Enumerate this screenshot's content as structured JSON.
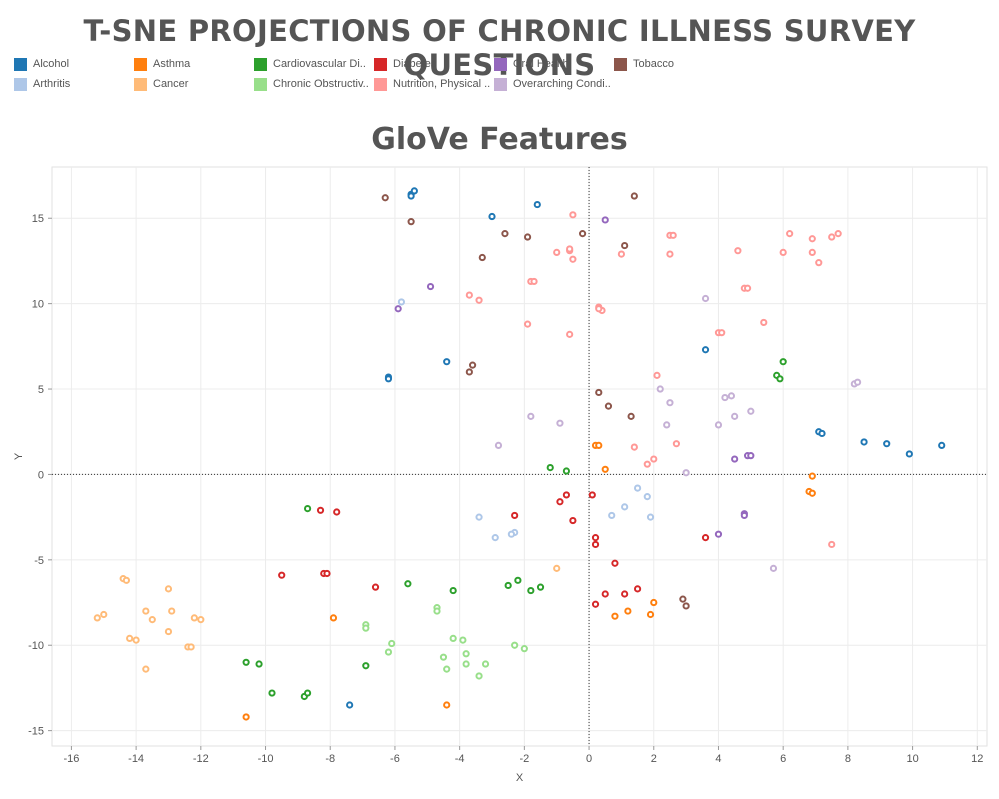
{
  "page": {
    "title": "T-SNE PROJECTIONS OF CHRONIC ILLNESS SURVEY QUESTIONS"
  },
  "legend": [
    {
      "label": "Alcohol",
      "color": "#1f77b4"
    },
    {
      "label": "Asthma",
      "color": "#ff7f0e"
    },
    {
      "label": "Cardiovascular Di..",
      "color": "#2ca02c"
    },
    {
      "label": "Diabetes",
      "color": "#d62728"
    },
    {
      "label": "Oral Health",
      "color": "#9467bd"
    },
    {
      "label": "Tobacco",
      "color": "#8c564b"
    },
    {
      "label": "Arthritis",
      "color": "#aec7e8"
    },
    {
      "label": "Cancer",
      "color": "#ffbb78"
    },
    {
      "label": "Chronic Obstructiv..",
      "color": "#98df8a"
    },
    {
      "label": "Nutrition, Physical ..",
      "color": "#ff9896"
    },
    {
      "label": "Overarching Condi..",
      "color": "#c5b0d5"
    }
  ],
  "chart_data": {
    "type": "scatter",
    "title": "GloVe Features",
    "xlabel": "X",
    "ylabel": "Y",
    "xlim": [
      -16.6,
      12.3
    ],
    "ylim": [
      -15.9,
      18.0
    ],
    "xticks": [
      -16,
      -14,
      -12,
      -10,
      -8,
      -6,
      -4,
      -2,
      0,
      2,
      4,
      6,
      8,
      10,
      12
    ],
    "yticks": [
      -15,
      -10,
      -5,
      0,
      5,
      10,
      15
    ],
    "grid": true,
    "reference_lines": {
      "x": 0,
      "y": 0,
      "style": "dotted"
    },
    "series": [
      {
        "name": "Alcohol",
        "color": "#1f77b4",
        "points": [
          [
            -5.5,
            16.4
          ],
          [
            -5.4,
            16.6
          ],
          [
            -5.5,
            16.3
          ],
          [
            -1.6,
            15.8
          ],
          [
            -3.0,
            15.1
          ],
          [
            -6.2,
            5.7
          ],
          [
            -6.2,
            5.6
          ],
          [
            -4.4,
            6.6
          ],
          [
            3.6,
            7.3
          ],
          [
            7.1,
            2.5
          ],
          [
            7.2,
            2.4
          ],
          [
            8.5,
            1.9
          ],
          [
            9.2,
            1.8
          ],
          [
            9.9,
            1.2
          ],
          [
            10.9,
            1.7
          ],
          [
            -7.4,
            -13.5
          ]
        ]
      },
      {
        "name": "Asthma",
        "color": "#ff7f0e",
        "points": [
          [
            0.2,
            1.7
          ],
          [
            0.3,
            1.7
          ],
          [
            0.5,
            0.3
          ],
          [
            6.9,
            -0.1
          ],
          [
            6.8,
            -1.0
          ],
          [
            6.9,
            -1.1
          ],
          [
            2.0,
            -7.5
          ],
          [
            1.2,
            -8.0
          ],
          [
            0.8,
            -8.3
          ],
          [
            1.9,
            -8.2
          ],
          [
            -7.9,
            -8.4
          ],
          [
            -10.6,
            -14.2
          ],
          [
            -4.4,
            -13.5
          ]
        ]
      },
      {
        "name": "Cardiovascular Di..",
        "color": "#2ca02c",
        "points": [
          [
            5.8,
            5.8
          ],
          [
            5.9,
            5.6
          ],
          [
            6.0,
            6.6
          ],
          [
            -1.2,
            0.4
          ],
          [
            -0.7,
            0.2
          ],
          [
            -8.7,
            -2.0
          ],
          [
            -5.6,
            -6.4
          ],
          [
            -4.2,
            -6.8
          ],
          [
            -2.5,
            -6.5
          ],
          [
            -2.2,
            -6.2
          ],
          [
            -1.8,
            -6.8
          ],
          [
            -1.5,
            -6.6
          ],
          [
            -6.9,
            -11.2
          ],
          [
            -10.6,
            -11.0
          ],
          [
            -10.2,
            -11.1
          ],
          [
            -9.8,
            -12.8
          ],
          [
            -8.8,
            -13.0
          ],
          [
            -8.7,
            -12.8
          ]
        ]
      },
      {
        "name": "Diabetes",
        "color": "#d62728",
        "points": [
          [
            -8.3,
            -2.1
          ],
          [
            -7.8,
            -2.2
          ],
          [
            -2.3,
            -2.4
          ],
          [
            -0.9,
            -1.6
          ],
          [
            -0.7,
            -1.2
          ],
          [
            -0.5,
            -2.7
          ],
          [
            0.1,
            -1.2
          ],
          [
            0.2,
            -3.7
          ],
          [
            0.2,
            -4.1
          ],
          [
            3.6,
            -3.7
          ],
          [
            -9.5,
            -5.9
          ],
          [
            -8.2,
            -5.8
          ],
          [
            -8.1,
            -5.8
          ],
          [
            -6.6,
            -6.6
          ],
          [
            0.8,
            -5.2
          ],
          [
            0.5,
            -7.0
          ],
          [
            1.1,
            -7.0
          ],
          [
            1.5,
            -6.7
          ],
          [
            0.2,
            -7.6
          ]
        ]
      },
      {
        "name": "Oral Health",
        "color": "#9467bd",
        "points": [
          [
            0.5,
            14.9
          ],
          [
            -4.9,
            11.0
          ],
          [
            -5.9,
            9.7
          ],
          [
            4.5,
            0.9
          ],
          [
            4.9,
            1.1
          ],
          [
            5.0,
            1.1
          ],
          [
            4.8,
            -2.3
          ],
          [
            4.8,
            -2.4
          ],
          [
            4.0,
            -3.5
          ]
        ]
      },
      {
        "name": "Tobacco",
        "color": "#8c564b",
        "points": [
          [
            -6.3,
            16.2
          ],
          [
            -5.5,
            14.8
          ],
          [
            1.4,
            16.3
          ],
          [
            -2.6,
            14.1
          ],
          [
            -1.9,
            13.9
          ],
          [
            -0.2,
            14.1
          ],
          [
            1.1,
            13.4
          ],
          [
            -3.3,
            12.7
          ],
          [
            -3.6,
            6.4
          ],
          [
            -3.7,
            6.0
          ],
          [
            0.3,
            4.8
          ],
          [
            0.6,
            4.0
          ],
          [
            1.3,
            3.4
          ],
          [
            2.9,
            -7.3
          ],
          [
            3.0,
            -7.7
          ]
        ]
      },
      {
        "name": "Arthritis",
        "color": "#aec7e8",
        "points": [
          [
            -5.8,
            10.1
          ],
          [
            1.5,
            -0.8
          ],
          [
            1.8,
            -1.3
          ],
          [
            1.1,
            -1.9
          ],
          [
            0.7,
            -2.4
          ],
          [
            1.9,
            -2.5
          ],
          [
            -3.4,
            -2.5
          ],
          [
            -2.9,
            -3.7
          ],
          [
            -2.3,
            -3.4
          ],
          [
            -2.4,
            -3.5
          ]
        ]
      },
      {
        "name": "Cancer",
        "color": "#ffbb78",
        "points": [
          [
            -1.0,
            -5.5
          ],
          [
            -14.4,
            -6.1
          ],
          [
            -14.3,
            -6.2
          ],
          [
            -13.0,
            -6.7
          ],
          [
            -13.7,
            -8.0
          ],
          [
            -12.9,
            -8.0
          ],
          [
            -15.2,
            -8.4
          ],
          [
            -15.0,
            -8.2
          ],
          [
            -13.5,
            -8.5
          ],
          [
            -12.2,
            -8.4
          ],
          [
            -12.0,
            -8.5
          ],
          [
            -13.0,
            -9.2
          ],
          [
            -14.2,
            -9.6
          ],
          [
            -14.0,
            -9.7
          ],
          [
            -12.4,
            -10.1
          ],
          [
            -12.3,
            -10.1
          ],
          [
            -13.7,
            -11.4
          ]
        ]
      },
      {
        "name": "Chronic Obstructiv..",
        "color": "#98df8a",
        "points": [
          [
            -4.7,
            -7.8
          ],
          [
            -4.7,
            -8.0
          ],
          [
            -6.9,
            -8.8
          ],
          [
            -6.9,
            -9.0
          ],
          [
            -4.2,
            -9.6
          ],
          [
            -3.9,
            -9.7
          ],
          [
            -6.1,
            -9.9
          ],
          [
            -6.2,
            -10.4
          ],
          [
            -3.8,
            -10.5
          ],
          [
            -2.3,
            -10.0
          ],
          [
            -2.0,
            -10.2
          ],
          [
            -4.5,
            -10.7
          ],
          [
            -3.2,
            -11.1
          ],
          [
            -3.8,
            -11.1
          ],
          [
            -4.4,
            -11.4
          ],
          [
            -3.4,
            -11.8
          ]
        ]
      },
      {
        "name": "Nutrition, Physical ..",
        "color": "#ff9896",
        "points": [
          [
            -0.5,
            15.2
          ],
          [
            2.5,
            14.0
          ],
          [
            2.6,
            14.0
          ],
          [
            6.2,
            14.1
          ],
          [
            6.9,
            13.8
          ],
          [
            7.5,
            13.9
          ],
          [
            7.7,
            14.1
          ],
          [
            -1.0,
            13.0
          ],
          [
            -0.6,
            13.1
          ],
          [
            -0.6,
            13.2
          ],
          [
            -0.5,
            12.6
          ],
          [
            1.0,
            12.9
          ],
          [
            2.5,
            12.9
          ],
          [
            4.6,
            13.1
          ],
          [
            6.0,
            13.0
          ],
          [
            6.9,
            13.0
          ],
          [
            7.1,
            12.4
          ],
          [
            -1.8,
            11.3
          ],
          [
            -1.7,
            11.3
          ],
          [
            4.8,
            10.9
          ],
          [
            4.9,
            10.9
          ],
          [
            -3.7,
            10.5
          ],
          [
            -3.4,
            10.2
          ],
          [
            0.3,
            9.8
          ],
          [
            0.4,
            9.6
          ],
          [
            0.3,
            9.7
          ],
          [
            -1.9,
            8.8
          ],
          [
            5.4,
            8.9
          ],
          [
            4.0,
            8.3
          ],
          [
            4.1,
            8.3
          ],
          [
            -0.6,
            8.2
          ],
          [
            2.1,
            5.8
          ],
          [
            2.7,
            1.8
          ],
          [
            1.4,
            1.6
          ],
          [
            2.0,
            0.9
          ],
          [
            1.8,
            0.6
          ],
          [
            7.5,
            -4.1
          ]
        ]
      },
      {
        "name": "Overarching Condi..",
        "color": "#c5b0d5",
        "points": [
          [
            3.6,
            10.3
          ],
          [
            8.2,
            5.3
          ],
          [
            8.3,
            5.4
          ],
          [
            2.2,
            5.0
          ],
          [
            4.2,
            4.5
          ],
          [
            4.4,
            4.6
          ],
          [
            2.5,
            4.2
          ],
          [
            5.0,
            3.7
          ],
          [
            -1.8,
            3.4
          ],
          [
            4.5,
            3.4
          ],
          [
            2.4,
            2.9
          ],
          [
            4.0,
            2.9
          ],
          [
            -0.9,
            3.0
          ],
          [
            -2.8,
            1.7
          ],
          [
            3.0,
            0.1
          ],
          [
            5.7,
            -5.5
          ]
        ]
      }
    ]
  }
}
